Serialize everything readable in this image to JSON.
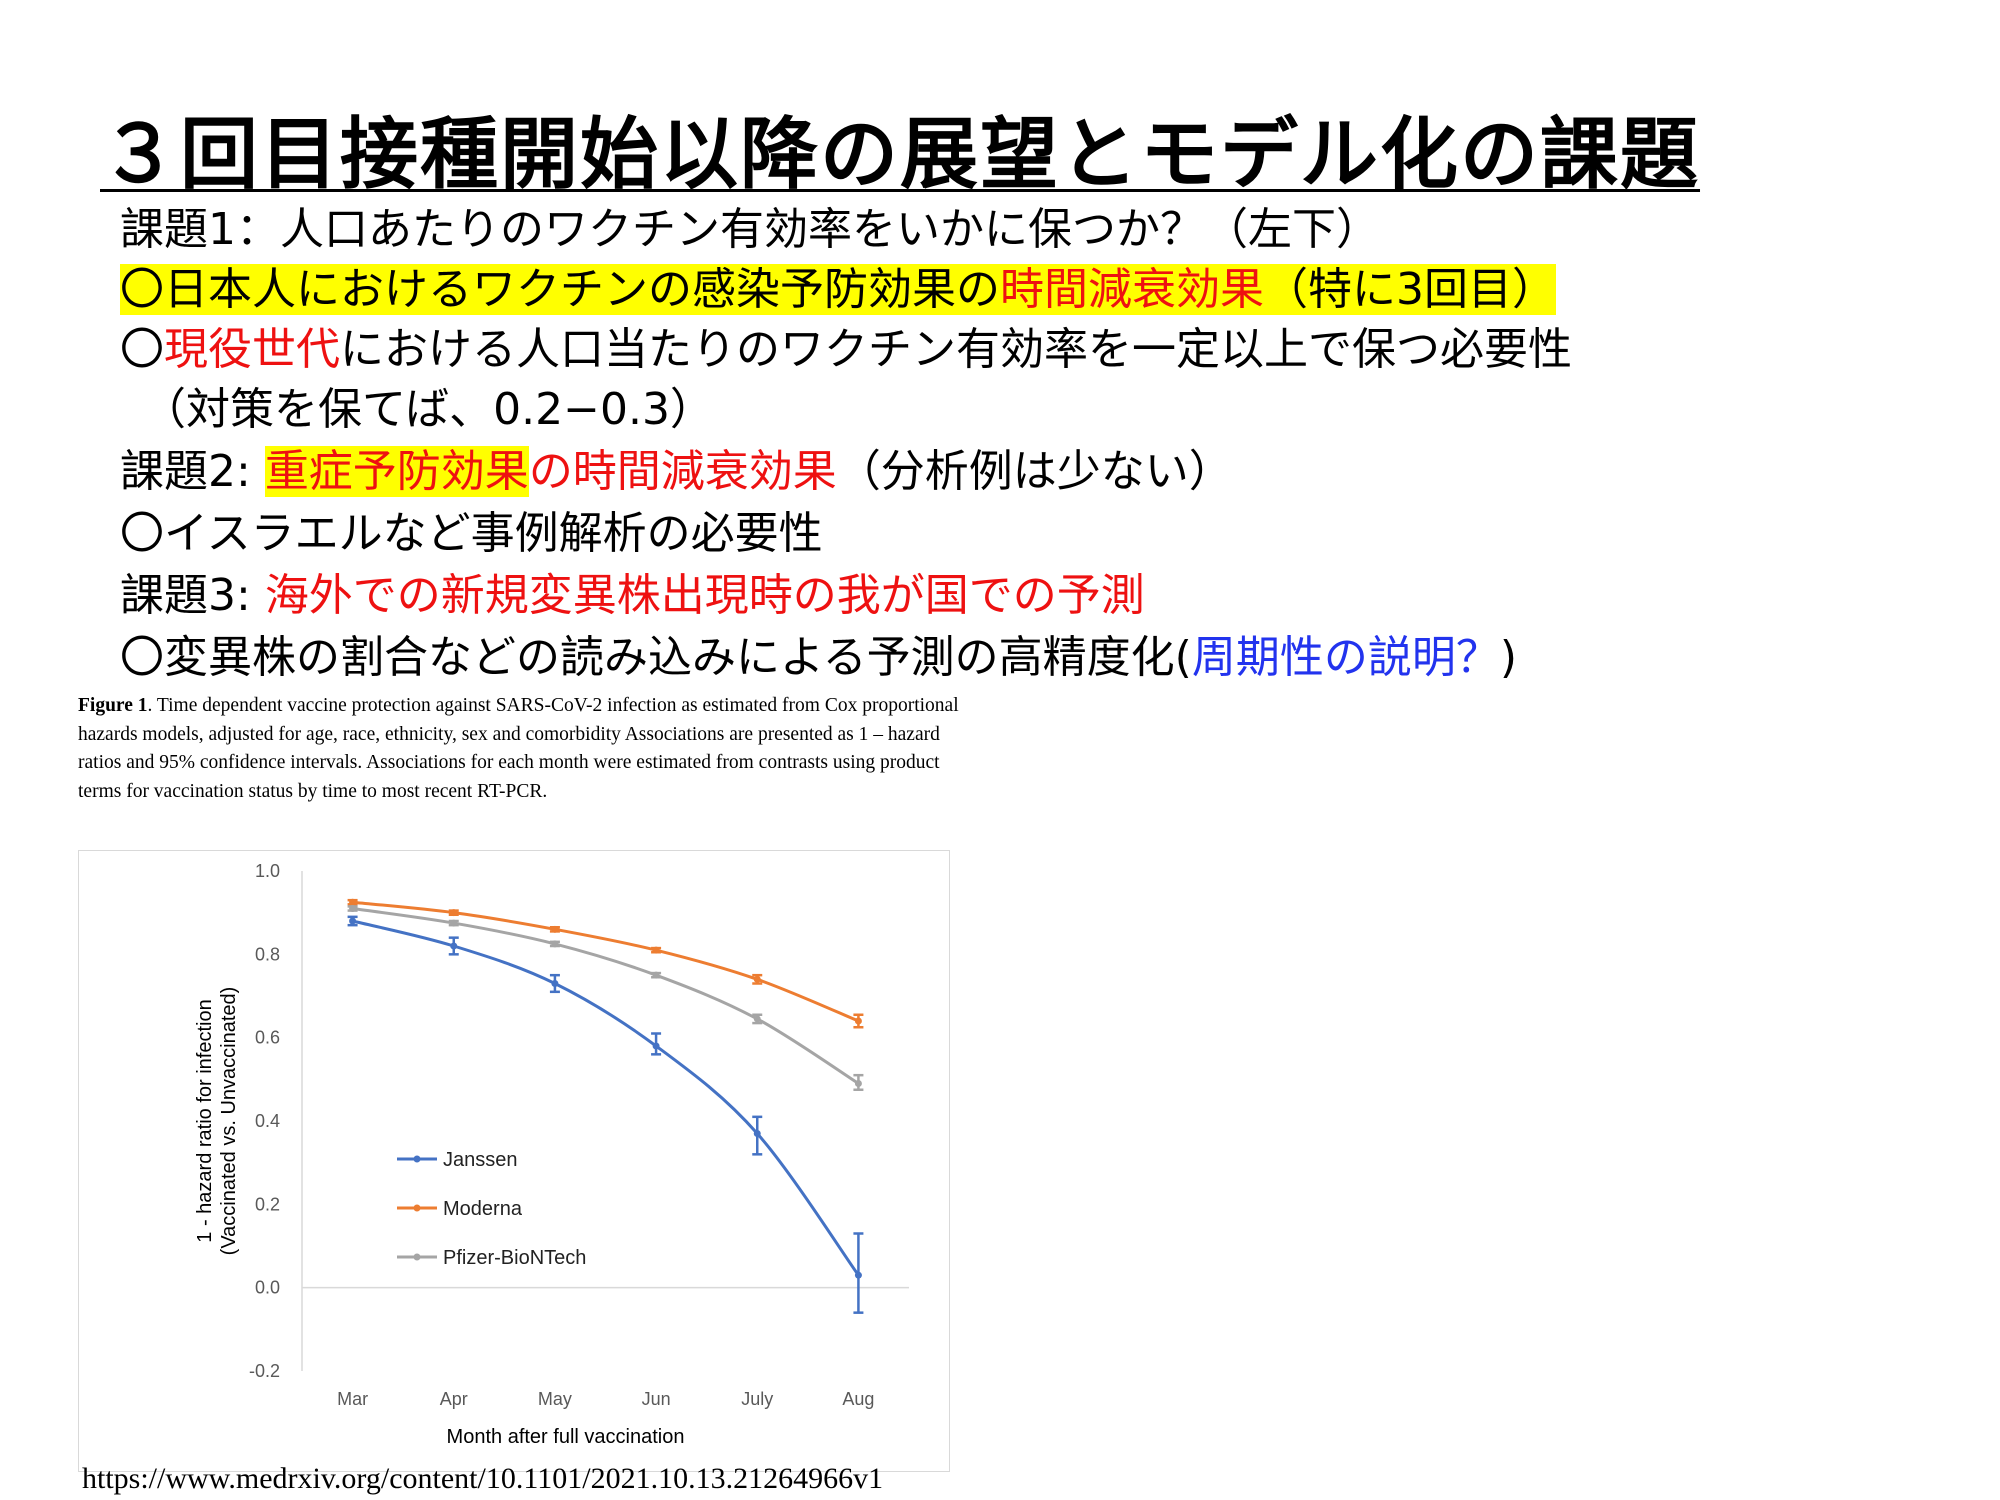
{
  "slide": {
    "title": "３回目接種開始以降の展望とモデル化の課題",
    "lines": [
      [
        {
          "t": "課題1：人口あたりのワクチン有効率をいかに保つか？（左下）"
        }
      ],
      [
        {
          "t": "〇日本人におけるワクチンの感染予防効果の",
          "hl": true
        },
        {
          "t": "時間減衰効果",
          "hl": true,
          "red": true
        },
        {
          "t": "（特に3回目）",
          "hl": true
        }
      ],
      [
        {
          "t": "〇"
        },
        {
          "t": "現役世代",
          "red": true
        },
        {
          "t": "における人口当たりのワクチン有効率を一定以上で保つ必要性"
        }
      ],
      [
        {
          "t": "　（対策を保てば、0.2−0.3）"
        }
      ],
      [
        {
          "t": "課題2: "
        },
        {
          "t": "重症予防効果",
          "red": true,
          "hl": true
        },
        {
          "t": "の時間減衰効果",
          "red": true
        },
        {
          "t": "（分析例は少ない）"
        }
      ],
      [
        {
          "t": "〇イスラエルなど事例解析の必要性"
        }
      ],
      [
        {
          "t": "課題3: "
        },
        {
          "t": "海外での新規変異株出現時の我が国での予測",
          "red": true
        }
      ],
      [
        {
          "t": "〇変異株の割合などの読み込みによる予測の高精度化("
        },
        {
          "t": "周期性の説明？",
          "blue": true
        },
        {
          "t": ")"
        }
      ]
    ],
    "caption_bold": "Figure 1",
    "caption_text": ". Time dependent vaccine protection against SARS-CoV-2 infection as estimated from Cox proportional hazards models, adjusted for age, race, ethnicity, sex and comorbidity Associations are presented as 1 – hazard ratios and 95% confidence intervals. Associations for each month were estimated from contrasts using product terms for vaccination status by time to most recent RT-PCR.",
    "url": "https://www.medrxiv.org/content/10.1101/2021.10.13.21264966v1"
  },
  "colors": {
    "red": "#ee1111",
    "blue": "#2233ee",
    "highlight": "#ffff00"
  },
  "chart_data": {
    "type": "line",
    "xlabel": "Month after full vaccination",
    "ylabel_lines": [
      "1 - hazard ratio for infection",
      "(Vaccinated vs. Unvaccinated)"
    ],
    "categories": [
      "Mar",
      "Apr",
      "May",
      "Jun",
      "July",
      "Aug"
    ],
    "ylim": [
      -0.2,
      1.0
    ],
    "yticks": [
      "1.0",
      "0.8",
      "0.6",
      "0.4",
      "0.2",
      "0.0",
      "-0.2"
    ],
    "ytick_values": [
      1.0,
      0.8,
      0.6,
      0.4,
      0.2,
      0.0,
      -0.2
    ],
    "legend_position": "lower-left inside plot",
    "series": [
      {
        "name": "Janssen",
        "color": "#4472c4",
        "values": [
          0.88,
          0.82,
          0.73,
          0.58,
          0.37,
          0.03
        ],
        "ci_low": [
          0.87,
          0.8,
          0.71,
          0.56,
          0.32,
          -0.06
        ],
        "ci_high": [
          0.89,
          0.84,
          0.75,
          0.61,
          0.41,
          0.13
        ]
      },
      {
        "name": "Moderna",
        "color": "#ed7d31",
        "values": [
          0.925,
          0.9,
          0.86,
          0.81,
          0.74,
          0.64
        ],
        "ci_low": [
          0.92,
          0.895,
          0.855,
          0.805,
          0.73,
          0.625
        ],
        "ci_high": [
          0.93,
          0.905,
          0.865,
          0.815,
          0.75,
          0.655
        ]
      },
      {
        "name": "Pfizer-BioNTech",
        "color": "#a5a5a5",
        "values": [
          0.91,
          0.875,
          0.825,
          0.75,
          0.645,
          0.49
        ],
        "ci_low": [
          0.905,
          0.87,
          0.82,
          0.745,
          0.635,
          0.475
        ],
        "ci_high": [
          0.915,
          0.88,
          0.83,
          0.755,
          0.655,
          0.51
        ]
      }
    ]
  }
}
